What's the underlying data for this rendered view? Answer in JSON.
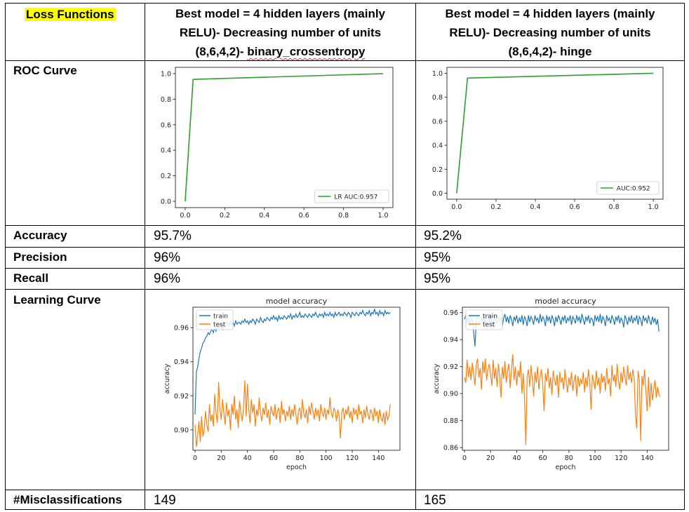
{
  "table": {
    "header": {
      "first": "Loss Functions",
      "col1_line1": "Best model = 4 hidden layers (mainly",
      "col1_line2": "RELU)- Decreasing number of units",
      "col1_line3_prefix": "(8,6,4,2)- ",
      "col1_line3_loss": "binary_crossentropy",
      "col2_line1": "Best model = 4 hidden layers (mainly",
      "col2_line2": "RELU)- Decreasing number of units",
      "col2_line3": "(8,6,4,2)- hinge"
    },
    "rows": {
      "roc": "ROC Curve",
      "accuracy": "Accuracy",
      "precision": "Precision",
      "recall": "Recall",
      "learning": "Learning Curve",
      "miscls": "#Misclassifications"
    },
    "col1": {
      "accuracy": "95.7%",
      "precision": "96%",
      "recall": "96%",
      "miscls": "149"
    },
    "col2": {
      "accuracy": "95.2%",
      "precision": "95%",
      "recall": "95%",
      "miscls": "165"
    }
  },
  "colors": {
    "roc_line": "#2ca02c",
    "train": "#1f77b4",
    "test": "#ff7f0e",
    "highlight": "#ffff00"
  },
  "chart_data": [
    {
      "id": "roc1",
      "type": "line",
      "x": [
        0.0,
        0.04,
        1.0
      ],
      "y": [
        0.0,
        0.955,
        1.0
      ],
      "xlim": [
        0,
        1
      ],
      "ylim": [
        0,
        1
      ],
      "xticks": [
        "0.0",
        "0.2",
        "0.4",
        "0.6",
        "0.8",
        "1.0"
      ],
      "yticks": [
        "0.0",
        "0.2",
        "0.4",
        "0.6",
        "0.8",
        "1.0"
      ],
      "legend": "LR AUC:0.957",
      "legend_position": "lower-right"
    },
    {
      "id": "roc2",
      "type": "line",
      "x": [
        0.0,
        0.055,
        1.0
      ],
      "y": [
        0.0,
        0.96,
        1.0
      ],
      "xlim": [
        0,
        1
      ],
      "ylim": [
        0,
        1
      ],
      "xticks": [
        "0.0",
        "0.2",
        "0.4",
        "0.6",
        "0.8",
        "1.0"
      ],
      "yticks": [
        "0.0",
        "0.2",
        "0.4",
        "0.6",
        "0.8",
        "1.0"
      ],
      "legend": "AUC:0.952",
      "legend_position": "lower-right"
    },
    {
      "id": "lc1",
      "type": "line",
      "title": "model accuracy",
      "xlabel": "epoch",
      "ylabel": "accuracy",
      "xlim": [
        0,
        150
      ],
      "ylim": [
        0.888,
        0.972
      ],
      "xticks": [
        0,
        20,
        40,
        60,
        80,
        100,
        120,
        140
      ],
      "yticks": [
        0.9,
        0.92,
        0.94,
        0.96
      ],
      "legend": [
        "train",
        "test"
      ],
      "legend_position": "upper-left",
      "series": [
        {
          "name": "train",
          "values": [
            0.909,
            0.934,
            0.937,
            0.942,
            0.946,
            0.948,
            0.951,
            0.952,
            0.954,
            0.955,
            0.957,
            0.956,
            0.958,
            0.959,
            0.957,
            0.96,
            0.958,
            0.961,
            0.96,
            0.962,
            0.961,
            0.959,
            0.962,
            0.961,
            0.963,
            0.962,
            0.961,
            0.964,
            0.962,
            0.963,
            0.961,
            0.964,
            0.962,
            0.963,
            0.963,
            0.962,
            0.964,
            0.963,
            0.965,
            0.963,
            0.964,
            0.962,
            0.964,
            0.963,
            0.965,
            0.964,
            0.962,
            0.965,
            0.964,
            0.963,
            0.966,
            0.964,
            0.963,
            0.965,
            0.964,
            0.966,
            0.965,
            0.964,
            0.966,
            0.965,
            0.967,
            0.965,
            0.966,
            0.964,
            0.967,
            0.965,
            0.966,
            0.965,
            0.967,
            0.966,
            0.965,
            0.967,
            0.966,
            0.968,
            0.965,
            0.967,
            0.966,
            0.968,
            0.966,
            0.967,
            0.969,
            0.966,
            0.967,
            0.966,
            0.968,
            0.967,
            0.966,
            0.968,
            0.967,
            0.966,
            0.968,
            0.967,
            0.969,
            0.967,
            0.966,
            0.968,
            0.967,
            0.968,
            0.966,
            0.969,
            0.967,
            0.968,
            0.967,
            0.969,
            0.967,
            0.968,
            0.966,
            0.969,
            0.967,
            0.968,
            0.969,
            0.967,
            0.968,
            0.967,
            0.969,
            0.968,
            0.967,
            0.969,
            0.968,
            0.966,
            0.969,
            0.968,
            0.967,
            0.969,
            0.968,
            0.967,
            0.969,
            0.968,
            0.97,
            0.968,
            0.967,
            0.969,
            0.968,
            0.97,
            0.967,
            0.969,
            0.968,
            0.971,
            0.968,
            0.969,
            0.967,
            0.97,
            0.968,
            0.969,
            0.967,
            0.97,
            0.968,
            0.969,
            0.968,
            0.969
          ]
        },
        {
          "name": "test",
          "values": [
            0.903,
            0.89,
            0.897,
            0.905,
            0.893,
            0.908,
            0.896,
            0.9,
            0.911,
            0.903,
            0.899,
            0.915,
            0.905,
            0.909,
            0.902,
            0.921,
            0.91,
            0.904,
            0.928,
            0.912,
            0.906,
            0.918,
            0.91,
            0.903,
            0.916,
            0.908,
            0.912,
            0.9,
            0.915,
            0.909,
            0.92,
            0.906,
            0.912,
            0.901,
            0.917,
            0.91,
            0.905,
            0.913,
            0.929,
            0.908,
            0.927,
            0.912,
            0.904,
            0.918,
            0.91,
            0.915,
            0.902,
            0.912,
            0.908,
            0.919,
            0.91,
            0.905,
            0.913,
            0.909,
            0.916,
            0.907,
            0.912,
            0.903,
            0.914,
            0.91,
            0.908,
            0.915,
            0.906,
            0.911,
            0.913,
            0.904,
            0.917,
            0.909,
            0.912,
            0.905,
            0.911,
            0.908,
            0.914,
            0.906,
            0.912,
            0.908,
            0.915,
            0.909,
            0.903,
            0.911,
            0.913,
            0.906,
            0.918,
            0.91,
            0.907,
            0.912,
            0.904,
            0.914,
            0.909,
            0.916,
            0.911,
            0.906,
            0.913,
            0.908,
            0.912,
            0.905,
            0.915,
            0.91,
            0.908,
            0.913,
            0.906,
            0.912,
            0.909,
            0.919,
            0.91,
            0.907,
            0.913,
            0.911,
            0.905,
            0.912,
            0.908,
            0.895,
            0.91,
            0.913,
            0.906,
            0.912,
            0.909,
            0.914,
            0.907,
            0.911,
            0.904,
            0.913,
            0.909,
            0.912,
            0.906,
            0.915,
            0.909,
            0.911,
            0.904,
            0.912,
            0.907,
            0.914,
            0.909,
            0.906,
            0.912,
            0.91,
            0.905,
            0.913,
            0.908,
            0.911,
            0.904,
            0.912,
            0.907,
            0.905,
            0.91,
            0.903,
            0.911,
            0.906,
            0.908,
            0.915
          ]
        }
      ]
    },
    {
      "id": "lc2",
      "type": "line",
      "title": "model accuracy",
      "xlabel": "epoch",
      "ylabel": "accuracy",
      "xlim": [
        0,
        150
      ],
      "ylim": [
        0.858,
        0.964
      ],
      "xticks": [
        0,
        20,
        40,
        60,
        80,
        100,
        120,
        140
      ],
      "yticks": [
        0.86,
        0.88,
        0.9,
        0.92,
        0.94,
        0.96
      ],
      "legend": [
        "train",
        "test"
      ],
      "legend_position": "upper-left",
      "series": [
        {
          "name": "train",
          "values": [
            0.955,
            0.958,
            0.952,
            0.957,
            0.95,
            0.958,
            0.955,
            0.946,
            0.935,
            0.952,
            0.958,
            0.955,
            0.95,
            0.957,
            0.953,
            0.958,
            0.951,
            0.956,
            0.959,
            0.952,
            0.957,
            0.954,
            0.949,
            0.958,
            0.955,
            0.952,
            0.958,
            0.953,
            0.957,
            0.95,
            0.956,
            0.959,
            0.953,
            0.957,
            0.952,
            0.958,
            0.955,
            0.95,
            0.957,
            0.954,
            0.958,
            0.952,
            0.956,
            0.953,
            0.958,
            0.951,
            0.957,
            0.955,
            0.95,
            0.958,
            0.953,
            0.957,
            0.955,
            0.951,
            0.958,
            0.954,
            0.956,
            0.952,
            0.959,
            0.953,
            0.957,
            0.955,
            0.95,
            0.958,
            0.954,
            0.957,
            0.952,
            0.958,
            0.955,
            0.95,
            0.957,
            0.953,
            0.958,
            0.955,
            0.951,
            0.957,
            0.954,
            0.958,
            0.952,
            0.956,
            0.954,
            0.958,
            0.951,
            0.957,
            0.955,
            0.952,
            0.958,
            0.954,
            0.957,
            0.952,
            0.959,
            0.955,
            0.951,
            0.957,
            0.954,
            0.958,
            0.952,
            0.956,
            0.955,
            0.95,
            0.958,
            0.954,
            0.957,
            0.953,
            0.959,
            0.952,
            0.957,
            0.955,
            0.95,
            0.958,
            0.954,
            0.956,
            0.952,
            0.958,
            0.955,
            0.951,
            0.957,
            0.954,
            0.958,
            0.952,
            0.956,
            0.954,
            0.949,
            0.958,
            0.955,
            0.951,
            0.957,
            0.953,
            0.958,
            0.952,
            0.956,
            0.954,
            0.958,
            0.951,
            0.957,
            0.955,
            0.95,
            0.958,
            0.954,
            0.956,
            0.952,
            0.958,
            0.954,
            0.951,
            0.957,
            0.953,
            0.956,
            0.951,
            0.955,
            0.946
          ]
        },
        {
          "name": "test",
          "values": [
            0.912,
            0.908,
            0.925,
            0.912,
            0.92,
            0.91,
            0.923,
            0.915,
            0.906,
            0.921,
            0.926,
            0.912,
            0.919,
            0.903,
            0.924,
            0.915,
            0.926,
            0.91,
            0.918,
            0.922,
            0.914,
            0.906,
            0.925,
            0.911,
            0.919,
            0.905,
            0.922,
            0.913,
            0.897,
            0.92,
            0.911,
            0.924,
            0.908,
            0.917,
            0.922,
            0.904,
            0.918,
            0.929,
            0.91,
            0.92,
            0.906,
            0.917,
            0.912,
            0.924,
            0.9,
            0.915,
            0.897,
            0.862,
            0.912,
            0.918,
            0.905,
            0.921,
            0.91,
            0.898,
            0.916,
            0.908,
            0.92,
            0.903,
            0.913,
            0.918,
            0.906,
            0.887,
            0.915,
            0.909,
            0.919,
            0.904,
            0.912,
            0.899,
            0.917,
            0.91,
            0.906,
            0.914,
            0.897,
            0.916,
            0.908,
            0.912,
            0.903,
            0.918,
            0.909,
            0.901,
            0.912,
            0.906,
            0.916,
            0.902,
            0.91,
            0.914,
            0.898,
            0.913,
            0.905,
            0.911,
            0.907,
            0.916,
            0.901,
            0.912,
            0.905,
            0.918,
            0.908,
            0.888,
            0.914,
            0.909,
            0.903,
            0.917,
            0.906,
            0.912,
            0.9,
            0.915,
            0.908,
            0.913,
            0.902,
            0.919,
            0.907,
            0.911,
            0.898,
            0.921,
            0.909,
            0.914,
            0.905,
            0.922,
            0.91,
            0.903,
            0.916,
            0.908,
            0.92,
            0.912,
            0.906,
            0.921,
            0.91,
            0.916,
            0.908,
            0.918,
            0.912,
            0.885,
            0.874,
            0.917,
            0.91,
            0.865,
            0.913,
            0.906,
            0.918,
            0.902,
            0.887,
            0.912,
            0.89,
            0.908,
            0.895,
            0.903,
            0.91,
            0.897,
            0.905,
            0.899,
            0.898
          ]
        }
      ]
    }
  ]
}
